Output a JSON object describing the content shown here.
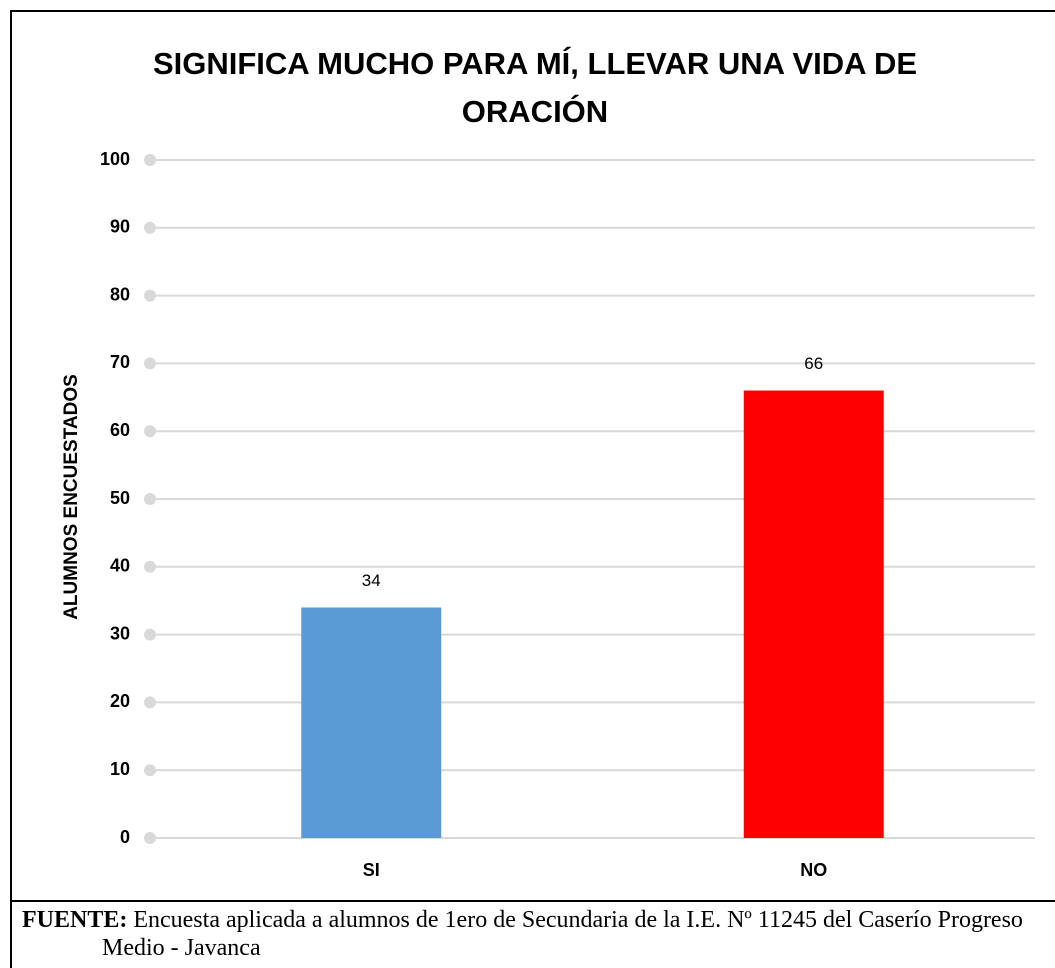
{
  "chart_data": {
    "type": "bar",
    "title": "SIGNIFICA MUCHO PARA MÍ, LLEVAR UNA VIDA DE ORACIÓN",
    "y_label": "ALUMNOS ENCUESTADOS",
    "categories": [
      "SI",
      "NO"
    ],
    "values": [
      34,
      66
    ],
    "colors": [
      "#5b9bd5",
      "#ff0000"
    ],
    "ylim": [
      0,
      100
    ],
    "yticks": [
      0,
      10,
      20,
      30,
      40,
      50,
      60,
      70,
      80,
      90,
      100
    ],
    "grid": true
  },
  "source": {
    "label": "FUENTE:",
    "text": "Encuesta aplicada a alumnos de 1ero de Secundaria de la I.E. Nº 11245 del Caserío Progreso Medio - Javanca"
  }
}
